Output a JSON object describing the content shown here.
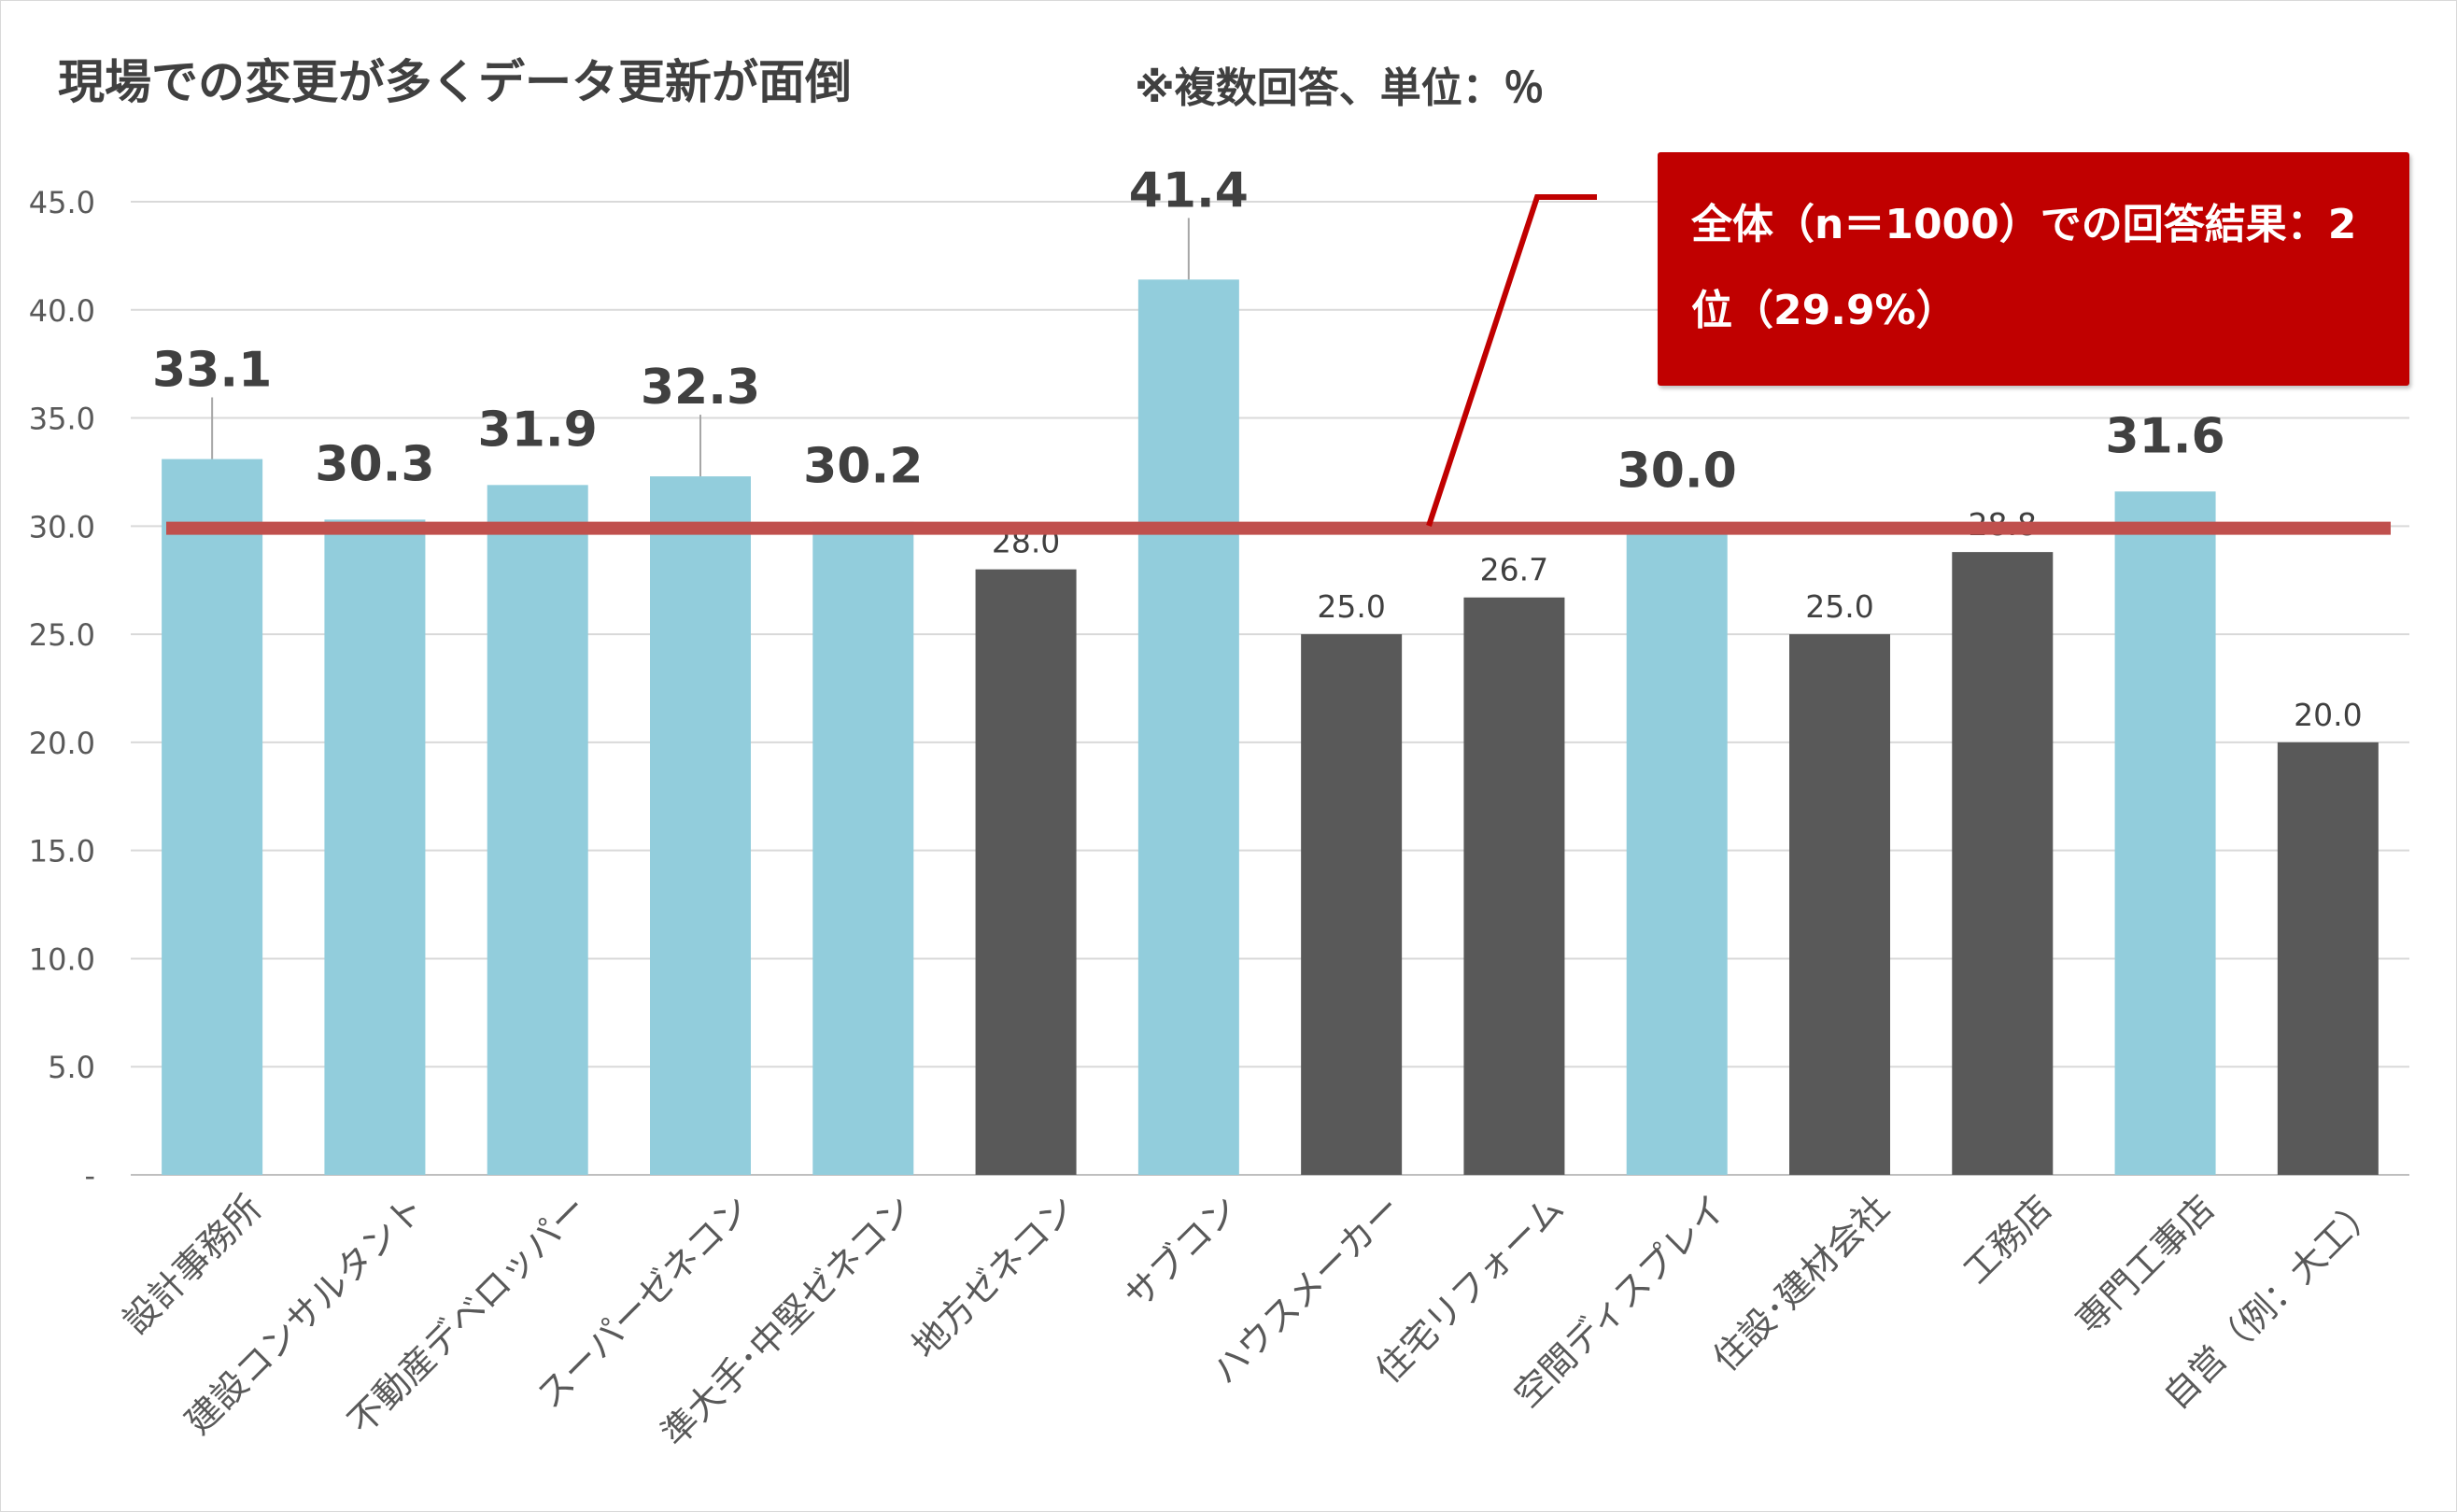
{
  "chart_data": {
    "type": "bar",
    "title": "現場での変更が多くデータ更新が面倒",
    "note": "※複数回答、単位：％",
    "categories": [
      "設計事務所",
      "建設コンサルタント",
      "不動産デベロッパー",
      "スーパーゼネコン",
      "準大手･中堅ゼネコン",
      "地方ゼネコン",
      "サブコン",
      "ハウスメーカー",
      "住宅リフォーム",
      "空間ディスプレイ",
      "住設･建材会社",
      "工務店",
      "専門工事店",
      "自営（例：大工）"
    ],
    "values": [
      33.1,
      30.3,
      31.9,
      32.3,
      30.2,
      28.0,
      41.4,
      25.0,
      26.7,
      30.0,
      25.0,
      28.8,
      31.6,
      20.0
    ],
    "value_labels": [
      "33.1",
      "30.3",
      "31.9",
      "32.3",
      "30.2",
      "28.0",
      "41.4",
      "25.0",
      "26.7",
      "30.0",
      "25.0",
      "28.8",
      "31.6",
      "20.0"
    ],
    "highlighted": [
      true,
      true,
      true,
      true,
      true,
      false,
      true,
      false,
      false,
      true,
      false,
      false,
      true,
      false
    ],
    "y_ticks": [
      "-",
      "5.0",
      "10.0",
      "15.0",
      "20.0",
      "25.0",
      "30.0",
      "35.0",
      "40.0",
      "45.0"
    ],
    "ylim": [
      0,
      45
    ],
    "reference_line": 29.9,
    "callout": "全体（n＝1000）での回答結果：2位（29.9%）",
    "grid": true,
    "colors": {
      "highlight_bar": "#92cddc",
      "other_bar": "#595959",
      "reference_line": "#c0504d",
      "callout_bg": "#c00000",
      "gridline": "#d9d9d9"
    }
  }
}
